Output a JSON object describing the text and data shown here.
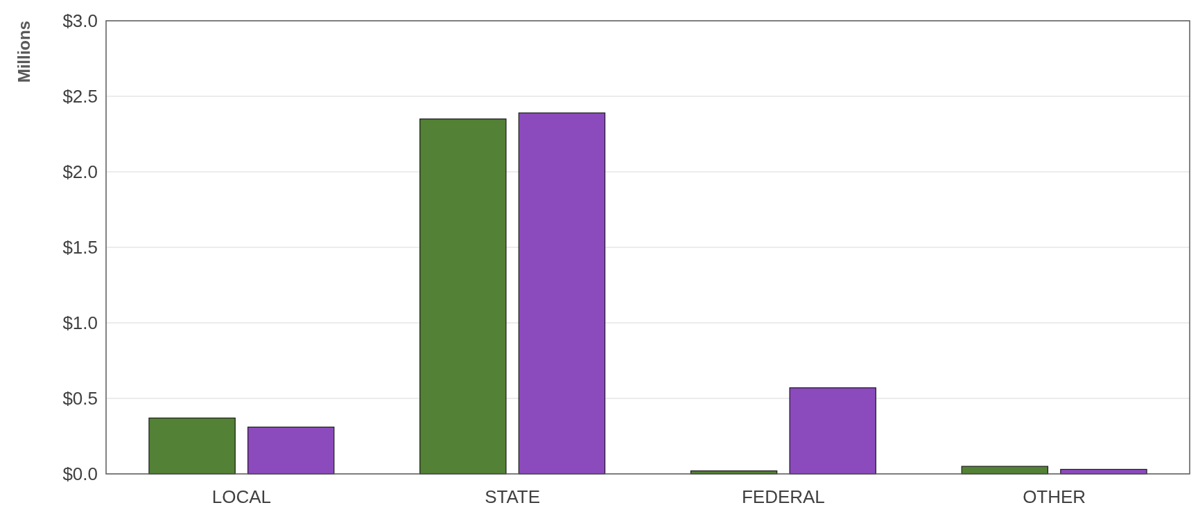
{
  "chart_data": {
    "type": "bar",
    "ylabel": "Millions",
    "categories": [
      "LOCAL",
      "STATE",
      "FEDERAL",
      "OTHER"
    ],
    "series": [
      {
        "color": "#538135",
        "values": [
          0.37,
          2.35,
          0.02,
          0.05
        ]
      },
      {
        "color": "#8b4bbd",
        "values": [
          0.31,
          2.39,
          0.57,
          0.03
        ]
      }
    ],
    "ylim": [
      0,
      3
    ],
    "yticks": [
      {
        "value": 0,
        "label": "$0.0"
      },
      {
        "value": 0.5,
        "label": "$0.5"
      },
      {
        "value": 1,
        "label": "$1.0"
      },
      {
        "value": 1.5,
        "label": "$1.5"
      },
      {
        "value": 2,
        "label": "$2.0"
      },
      {
        "value": 2.5,
        "label": "$2.5"
      },
      {
        "value": 3,
        "label": "$3.0"
      }
    ],
    "grid": "y"
  }
}
